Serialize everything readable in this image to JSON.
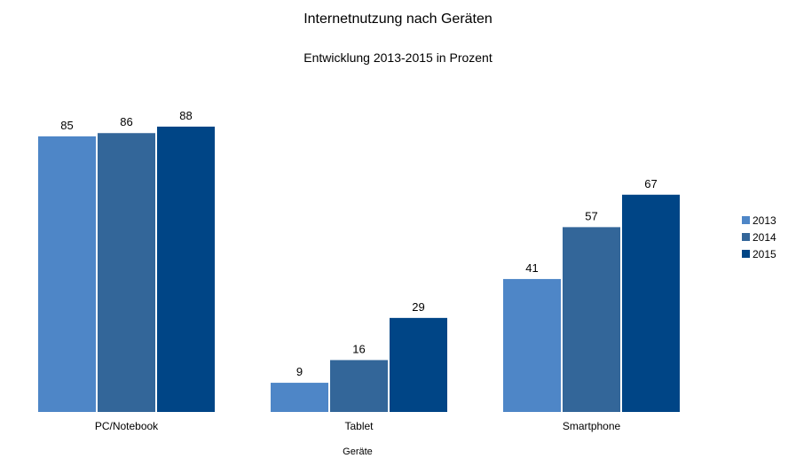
{
  "chart_data": {
    "type": "bar",
    "title": "Internetnutzung nach Geräten",
    "subtitle": "Entwicklung 2013-2015 in Prozent",
    "xlabel": "Geräte",
    "ylabel": "",
    "ylim": [
      0,
      100
    ],
    "grid": false,
    "legend_position": "right",
    "categories": [
      "PC/Notebook",
      "Tablet",
      "Smartphone"
    ],
    "series": [
      {
        "name": "2013",
        "color": "#4e86c7",
        "values": [
          85,
          9,
          41
        ]
      },
      {
        "name": "2014",
        "color": "#336699",
        "values": [
          86,
          16,
          57
        ]
      },
      {
        "name": "2015",
        "color": "#004586",
        "values": [
          88,
          29,
          67
        ]
      }
    ]
  }
}
